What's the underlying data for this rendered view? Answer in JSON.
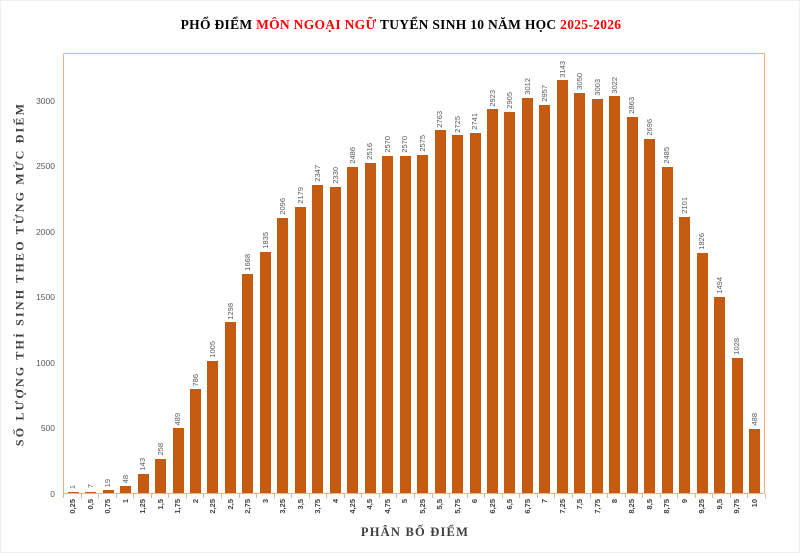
{
  "title": {
    "segments": [
      {
        "text": "PHỔ ĐIỂM ",
        "color": "#000000"
      },
      {
        "text": "MÔN NGOẠI NGỮ",
        "color": "#ff0000"
      },
      {
        "text": " TUYỂN SINH 10 NĂM HỌC ",
        "color": "#000000"
      },
      {
        "text": "2025-2026",
        "color": "#ff0000"
      }
    ]
  },
  "chart_data": {
    "type": "bar",
    "title": "PHỔ ĐIỂM MÔN NGOẠI NGỮ TUYỂN SINH 10 NĂM HỌC 2025-2026",
    "xlabel": "PHÂN BỐ ĐIỂM",
    "ylabel": "SỐ LƯỢNG THÍ SINH THEO TỪNG MỨC ĐIỂM",
    "categories": [
      "0,25",
      "0,5",
      "0,75",
      "1",
      "1,25",
      "1,5",
      "1,75",
      "2",
      "2,25",
      "2,5",
      "2,75",
      "3",
      "3,25",
      "3,5",
      "3,75",
      "4",
      "4,25",
      "4,5",
      "4,75",
      "5",
      "5,25",
      "5,5",
      "5,75",
      "6",
      "6,25",
      "6,5",
      "6,75",
      "7",
      "7,25",
      "7,5",
      "7,75",
      "8",
      "8,25",
      "8,5",
      "8,75",
      "9",
      "9,25",
      "9,5",
      "9,75",
      "10"
    ],
    "values": [
      1,
      7,
      19,
      48,
      143,
      258,
      489,
      786,
      1005,
      1298,
      1668,
      1835,
      2096,
      2179,
      2347,
      2330,
      2486,
      2516,
      2570,
      2570,
      2575,
      2763,
      2725,
      2741,
      2923,
      2905,
      3012,
      2957,
      3143,
      3050,
      3003,
      3022,
      2863,
      2696,
      2485,
      2101,
      1826,
      1494,
      1028,
      488
    ],
    "yticks": [
      0,
      500,
      1000,
      1500,
      2000,
      2500,
      3000
    ],
    "ylim": [
      0,
      3341
    ],
    "grid": false,
    "legend": "none",
    "bar_value_labels": true,
    "bar_color": "#C55A11",
    "plot_border_color": "#F4B183",
    "value_label_color": "#595959",
    "ytick_label_color": "#595959",
    "xtick_label_color": "#404040",
    "title_accent_color": "#ff0000"
  }
}
